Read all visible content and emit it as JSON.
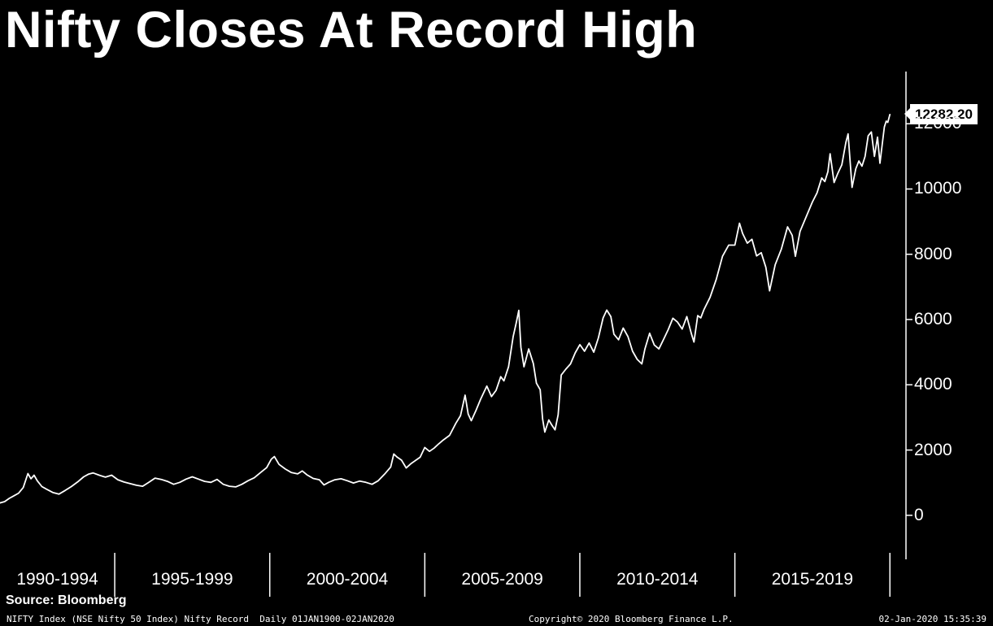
{
  "title": "Nifty Closes At Record High",
  "source_label": "Source: Bloomberg",
  "price_tag": {
    "label": "12282.20",
    "value": 12282.2
  },
  "footer": {
    "left": "NIFTY Index (NSE Nifty 50 Index) Nifty Record  Daily 01JAN1900-02JAN2020",
    "center": "Copyright© 2020 Bloomberg Finance L.P.",
    "right": "02-Jan-2020 15:35:39"
  },
  "colors": {
    "background": "#000000",
    "line": "#ffffff",
    "axis": "#ffffff",
    "text": "#ffffff",
    "price_box_bg": "#ffffff",
    "price_box_text": "#000000"
  },
  "chart_data": {
    "type": "line",
    "title": "Nifty Closes At Record High",
    "xlabel": "",
    "ylabel": "",
    "grid": false,
    "legend": "none",
    "line_color": "#ffffff",
    "x_range": [
      1991.3,
      2020.02
    ],
    "ylim": [
      -1150,
      13600
    ],
    "yticks": [
      0,
      2000,
      4000,
      6000,
      8000,
      10000,
      12000
    ],
    "x_period_labels": [
      "1990-1994",
      "1995-1999",
      "2000-2004",
      "2005-2009",
      "2010-2014",
      "2015-2019"
    ],
    "x_boundaries": [
      1995,
      2000,
      2005,
      2010,
      2015,
      2020
    ],
    "last_value": 12282.2,
    "series": [
      {
        "name": "NIFTY Index",
        "x": [
          1991.3,
          1991.45,
          1991.6,
          1991.75,
          1991.9,
          1992.05,
          1992.2,
          1992.3,
          1992.4,
          1992.5,
          1992.65,
          1992.8,
          1993.0,
          1993.2,
          1993.4,
          1993.6,
          1993.8,
          1994.0,
          1994.15,
          1994.3,
          1994.5,
          1994.7,
          1994.9,
          1995.1,
          1995.3,
          1995.5,
          1995.7,
          1995.9,
          1996.1,
          1996.3,
          1996.5,
          1996.7,
          1996.9,
          1997.1,
          1997.3,
          1997.5,
          1997.7,
          1997.9,
          1998.1,
          1998.3,
          1998.5,
          1998.7,
          1998.9,
          1999.1,
          1999.3,
          1999.5,
          1999.7,
          1999.9,
          2000.05,
          2000.15,
          2000.3,
          2000.5,
          2000.7,
          2000.9,
          2001.05,
          2001.2,
          2001.4,
          2001.6,
          2001.75,
          2001.9,
          2002.1,
          2002.3,
          2002.5,
          2002.7,
          2002.9,
          2003.1,
          2003.3,
          2003.5,
          2003.7,
          2003.9,
          2004.0,
          2004.1,
          2004.25,
          2004.4,
          2004.55,
          2004.7,
          2004.85,
          2005.0,
          2005.15,
          2005.3,
          2005.45,
          2005.6,
          2005.8,
          2006.0,
          2006.15,
          2006.3,
          2006.4,
          2006.5,
          2006.65,
          2006.8,
          2007.0,
          2007.15,
          2007.3,
          2007.45,
          2007.55,
          2007.7,
          2007.85,
          2007.95,
          2008.03,
          2008.1,
          2008.2,
          2008.35,
          2008.5,
          2008.6,
          2008.72,
          2008.8,
          2008.87,
          2009.0,
          2009.1,
          2009.2,
          2009.3,
          2009.4,
          2009.55,
          2009.7,
          2009.85,
          2010.0,
          2010.15,
          2010.3,
          2010.45,
          2010.6,
          2010.75,
          2010.87,
          2011.0,
          2011.1,
          2011.25,
          2011.4,
          2011.55,
          2011.7,
          2011.85,
          2012.0,
          2012.1,
          2012.25,
          2012.4,
          2012.55,
          2012.7,
          2012.85,
          2013.0,
          2013.15,
          2013.3,
          2013.45,
          2013.6,
          2013.68,
          2013.8,
          2013.9,
          2014.0,
          2014.2,
          2014.4,
          2014.6,
          2014.8,
          2015.0,
          2015.15,
          2015.25,
          2015.4,
          2015.55,
          2015.7,
          2015.85,
          2016.0,
          2016.12,
          2016.3,
          2016.5,
          2016.7,
          2016.85,
          2016.95,
          2017.1,
          2017.3,
          2017.5,
          2017.65,
          2017.8,
          2017.9,
          2018.0,
          2018.07,
          2018.2,
          2018.32,
          2018.45,
          2018.58,
          2018.65,
          2018.78,
          2018.9,
          2019.0,
          2019.1,
          2019.2,
          2019.3,
          2019.4,
          2019.5,
          2019.6,
          2019.68,
          2019.75,
          2019.82,
          2019.88,
          2019.93,
          2020.0
        ],
        "values": [
          380,
          420,
          520,
          600,
          680,
          850,
          1280,
          1120,
          1230,
          1060,
          880,
          800,
          700,
          650,
          760,
          880,
          1020,
          1180,
          1260,
          1300,
          1230,
          1170,
          1230,
          1090,
          1020,
          970,
          920,
          890,
          1010,
          1140,
          1100,
          1040,
          950,
          1010,
          1110,
          1180,
          1110,
          1040,
          1010,
          1100,
          950,
          890,
          870,
          950,
          1060,
          1150,
          1310,
          1460,
          1720,
          1800,
          1560,
          1420,
          1310,
          1270,
          1360,
          1240,
          1130,
          1090,
          930,
          1010,
          1090,
          1120,
          1060,
          990,
          1050,
          1010,
          950,
          1060,
          1260,
          1480,
          1880,
          1790,
          1690,
          1450,
          1580,
          1680,
          1780,
          2080,
          1960,
          2060,
          2190,
          2310,
          2450,
          2820,
          3050,
          3680,
          3100,
          2900,
          3210,
          3560,
          3960,
          3640,
          3830,
          4250,
          4120,
          4550,
          5480,
          5900,
          6280,
          5150,
          4550,
          5100,
          4650,
          4050,
          3850,
          2950,
          2550,
          2920,
          2760,
          2620,
          3080,
          4300,
          4480,
          4640,
          4980,
          5230,
          5030,
          5280,
          5000,
          5440,
          6050,
          6290,
          6090,
          5550,
          5380,
          5740,
          5480,
          5030,
          4780,
          4640,
          5100,
          5580,
          5220,
          5100,
          5390,
          5690,
          6040,
          5920,
          5710,
          6090,
          5560,
          5310,
          6120,
          6050,
          6300,
          6680,
          7230,
          7940,
          8280,
          8280,
          8950,
          8640,
          8340,
          8460,
          7950,
          8050,
          7600,
          6880,
          7680,
          8160,
          8840,
          8580,
          7940,
          8700,
          9150,
          9600,
          9880,
          10340,
          10230,
          10530,
          11080,
          10200,
          10480,
          10740,
          11430,
          11690,
          10050,
          10620,
          10860,
          10700,
          11000,
          11630,
          11750,
          11000,
          11590,
          10790,
          11350,
          11900,
          12080,
          12040,
          12282.2
        ]
      }
    ]
  }
}
